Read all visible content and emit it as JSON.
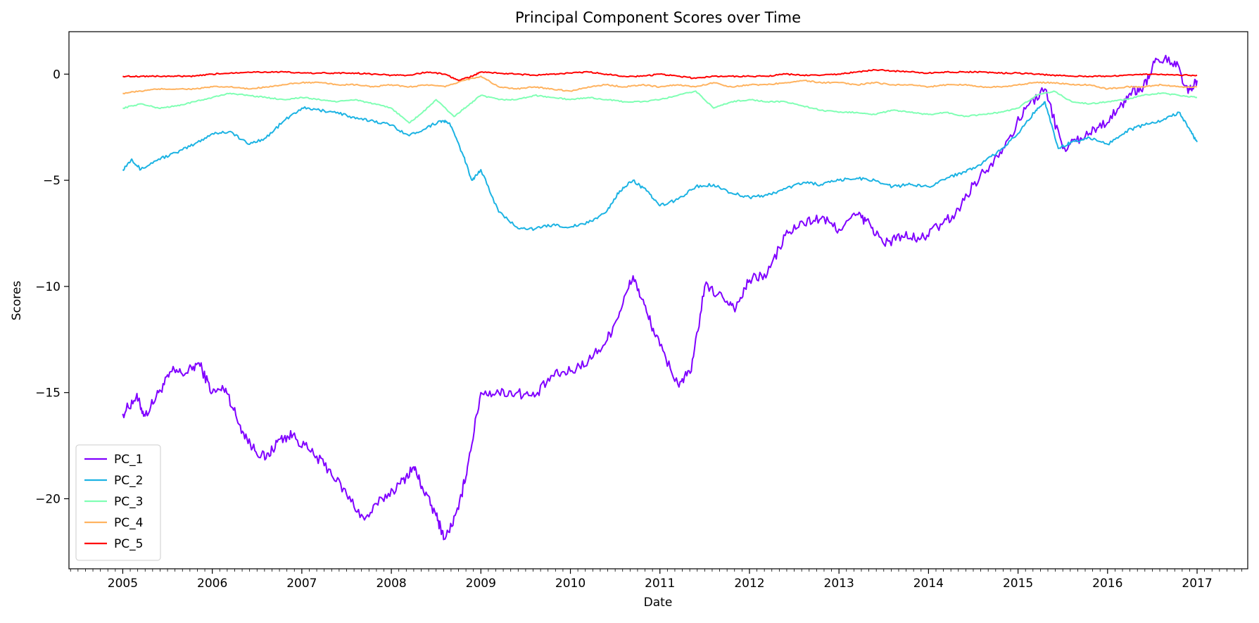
{
  "chart_data": {
    "type": "line",
    "title": "Principal Component Scores over Time",
    "xlabel": "Date",
    "ylabel": "Scores",
    "xlim": [
      "2004-05-25",
      "2017-07-25"
    ],
    "ylim": [
      -23.3,
      2.0
    ],
    "xticks": [
      "2005",
      "2006",
      "2007",
      "2008",
      "2009",
      "2010",
      "2011",
      "2012",
      "2013",
      "2014",
      "2015",
      "2016",
      "2017"
    ],
    "yticks": [
      0,
      -5,
      -10,
      -15,
      -20
    ],
    "ytick_labels": [
      "0",
      "−5",
      "−10",
      "−15",
      "−20"
    ],
    "grid": false,
    "legend_position": "lower-left",
    "series": [
      {
        "name": "PC_1",
        "color": "#8000ff",
        "x": [
          2005.0,
          2005.15,
          2005.25,
          2005.4,
          2005.55,
          2005.7,
          2005.85,
          2006.0,
          2006.15,
          2006.3,
          2006.45,
          2006.6,
          2006.75,
          2006.9,
          2007.1,
          2007.3,
          2007.5,
          2007.7,
          2007.9,
          2008.1,
          2008.25,
          2008.35,
          2008.5,
          2008.6,
          2008.75,
          2008.85,
          2009.0,
          2009.2,
          2009.4,
          2009.6,
          2009.8,
          2010.0,
          2010.2,
          2010.4,
          2010.55,
          2010.7,
          2010.85,
          2011.0,
          2011.2,
          2011.35,
          2011.5,
          2011.7,
          2011.85,
          2012.0,
          2012.2,
          2012.4,
          2012.6,
          2012.8,
          2013.0,
          2013.2,
          2013.35,
          2013.5,
          2013.7,
          2013.9,
          2014.1,
          2014.3,
          2014.5,
          2014.7,
          2014.9,
          2015.1,
          2015.3,
          2015.5,
          2015.7,
          2015.9,
          2016.1,
          2016.25,
          2016.4,
          2016.55,
          2016.75,
          2016.9,
          2017.0
        ],
        "y": [
          -16.0,
          -15.2,
          -16.1,
          -15.0,
          -14.0,
          -14.1,
          -13.6,
          -15.0,
          -14.8,
          -16.5,
          -17.6,
          -18.1,
          -17.2,
          -17.0,
          -17.8,
          -18.6,
          -19.8,
          -21.0,
          -20.0,
          -19.3,
          -18.5,
          -19.5,
          -20.8,
          -21.9,
          -20.5,
          -18.5,
          -15.0,
          -15.0,
          -15.0,
          -15.2,
          -14.2,
          -14.0,
          -13.5,
          -12.6,
          -11.2,
          -9.5,
          -11.2,
          -12.8,
          -14.6,
          -14.0,
          -10.0,
          -10.5,
          -11.0,
          -9.7,
          -9.4,
          -7.6,
          -7.0,
          -6.8,
          -7.3,
          -6.6,
          -7.1,
          -8.0,
          -7.6,
          -7.8,
          -7.2,
          -6.6,
          -5.2,
          -4.2,
          -3.0,
          -1.5,
          -0.7,
          -3.5,
          -3.0,
          -2.5,
          -1.8,
          -0.9,
          -0.6,
          0.7,
          0.6,
          -0.9,
          -0.3
        ]
      },
      {
        "name": "PC_2",
        "color": "#1cb3e3",
        "x": [
          2005.0,
          2005.1,
          2005.2,
          2005.4,
          2005.6,
          2005.8,
          2006.0,
          2006.2,
          2006.4,
          2006.6,
          2006.8,
          2007.0,
          2007.2,
          2007.4,
          2007.6,
          2007.8,
          2008.0,
          2008.2,
          2008.4,
          2008.55,
          2008.65,
          2008.8,
          2008.9,
          2009.0,
          2009.2,
          2009.4,
          2009.6,
          2009.8,
          2010.0,
          2010.2,
          2010.4,
          2010.55,
          2010.7,
          2010.85,
          2011.0,
          2011.2,
          2011.4,
          2011.6,
          2011.8,
          2012.0,
          2012.2,
          2012.4,
          2012.6,
          2012.8,
          2013.0,
          2013.2,
          2013.4,
          2013.6,
          2013.8,
          2014.0,
          2014.2,
          2014.4,
          2014.6,
          2014.8,
          2015.0,
          2015.2,
          2015.3,
          2015.45,
          2015.6,
          2015.8,
          2016.0,
          2016.2,
          2016.4,
          2016.6,
          2016.8,
          2016.9,
          2017.0
        ],
        "y": [
          -4.5,
          -4.0,
          -4.5,
          -4.0,
          -3.7,
          -3.3,
          -2.8,
          -2.7,
          -3.3,
          -3.0,
          -2.2,
          -1.6,
          -1.7,
          -1.8,
          -2.1,
          -2.2,
          -2.4,
          -2.9,
          -2.5,
          -2.2,
          -2.3,
          -3.8,
          -5.0,
          -4.5,
          -6.5,
          -7.2,
          -7.3,
          -7.1,
          -7.2,
          -7.0,
          -6.5,
          -5.5,
          -5.0,
          -5.5,
          -6.2,
          -5.9,
          -5.3,
          -5.2,
          -5.6,
          -5.8,
          -5.7,
          -5.4,
          -5.1,
          -5.2,
          -5.0,
          -4.9,
          -5.0,
          -5.3,
          -5.2,
          -5.3,
          -4.9,
          -4.6,
          -4.2,
          -3.6,
          -2.8,
          -1.7,
          -1.3,
          -3.5,
          -3.2,
          -3.0,
          -3.3,
          -2.7,
          -2.4,
          -2.2,
          -1.8,
          -2.5,
          -3.2
        ]
      },
      {
        "name": "PC_3",
        "color": "#80ffb4",
        "x": [
          2005.0,
          2005.2,
          2005.4,
          2005.6,
          2005.8,
          2006.0,
          2006.2,
          2006.4,
          2006.6,
          2006.8,
          2007.0,
          2007.2,
          2007.4,
          2007.6,
          2007.8,
          2008.0,
          2008.2,
          2008.35,
          2008.5,
          2008.7,
          2008.85,
          2009.0,
          2009.2,
          2009.4,
          2009.6,
          2009.8,
          2010.0,
          2010.2,
          2010.4,
          2010.6,
          2010.8,
          2011.0,
          2011.2,
          2011.4,
          2011.6,
          2011.8,
          2012.0,
          2012.2,
          2012.4,
          2012.6,
          2012.8,
          2013.0,
          2013.2,
          2013.4,
          2013.6,
          2013.8,
          2014.0,
          2014.2,
          2014.4,
          2014.6,
          2014.8,
          2015.0,
          2015.2,
          2015.4,
          2015.6,
          2015.8,
          2016.0,
          2016.2,
          2016.4,
          2016.6,
          2016.8,
          2017.0
        ],
        "y": [
          -1.6,
          -1.4,
          -1.6,
          -1.5,
          -1.3,
          -1.1,
          -0.9,
          -1.0,
          -1.1,
          -1.2,
          -1.1,
          -1.2,
          -1.3,
          -1.2,
          -1.4,
          -1.6,
          -2.3,
          -1.8,
          -1.2,
          -2.0,
          -1.5,
          -1.0,
          -1.2,
          -1.2,
          -1.0,
          -1.1,
          -1.2,
          -1.1,
          -1.2,
          -1.3,
          -1.3,
          -1.2,
          -1.0,
          -0.8,
          -1.6,
          -1.3,
          -1.2,
          -1.3,
          -1.3,
          -1.5,
          -1.7,
          -1.8,
          -1.8,
          -1.9,
          -1.7,
          -1.8,
          -1.9,
          -1.8,
          -2.0,
          -1.9,
          -1.8,
          -1.6,
          -1.0,
          -0.8,
          -1.3,
          -1.4,
          -1.3,
          -1.2,
          -1.0,
          -0.9,
          -1.0,
          -1.1
        ]
      },
      {
        "name": "PC_4",
        "color": "#ffb360",
        "x": [
          2005.0,
          2005.2,
          2005.4,
          2005.6,
          2005.8,
          2006.0,
          2006.2,
          2006.4,
          2006.6,
          2006.8,
          2007.0,
          2007.2,
          2007.4,
          2007.6,
          2007.8,
          2008.0,
          2008.2,
          2008.4,
          2008.6,
          2008.8,
          2009.0,
          2009.2,
          2009.4,
          2009.6,
          2009.8,
          2010.0,
          2010.2,
          2010.4,
          2010.6,
          2010.8,
          2011.0,
          2011.2,
          2011.4,
          2011.6,
          2011.8,
          2012.0,
          2012.2,
          2012.4,
          2012.6,
          2012.8,
          2013.0,
          2013.2,
          2013.4,
          2013.6,
          2013.8,
          2014.0,
          2014.2,
          2014.4,
          2014.6,
          2014.8,
          2015.0,
          2015.2,
          2015.4,
          2015.6,
          2015.8,
          2016.0,
          2016.2,
          2016.4,
          2016.6,
          2016.8,
          2017.0
        ],
        "y": [
          -0.9,
          -0.8,
          -0.7,
          -0.7,
          -0.7,
          -0.6,
          -0.6,
          -0.7,
          -0.6,
          -0.5,
          -0.4,
          -0.4,
          -0.5,
          -0.5,
          -0.6,
          -0.5,
          -0.6,
          -0.5,
          -0.6,
          -0.3,
          -0.1,
          -0.6,
          -0.7,
          -0.6,
          -0.7,
          -0.8,
          -0.6,
          -0.5,
          -0.6,
          -0.5,
          -0.6,
          -0.5,
          -0.6,
          -0.4,
          -0.6,
          -0.5,
          -0.5,
          -0.4,
          -0.3,
          -0.4,
          -0.4,
          -0.5,
          -0.4,
          -0.5,
          -0.5,
          -0.6,
          -0.5,
          -0.5,
          -0.6,
          -0.6,
          -0.5,
          -0.4,
          -0.4,
          -0.5,
          -0.5,
          -0.7,
          -0.6,
          -0.6,
          -0.5,
          -0.6,
          -0.6
        ]
      },
      {
        "name": "PC_5",
        "color": "#ff0000",
        "x": [
          2005.0,
          2005.2,
          2005.4,
          2005.6,
          2005.8,
          2006.0,
          2006.2,
          2006.4,
          2006.6,
          2006.8,
          2007.0,
          2007.2,
          2007.4,
          2007.6,
          2007.8,
          2008.0,
          2008.2,
          2008.4,
          2008.6,
          2008.75,
          2008.9,
          2009.0,
          2009.2,
          2009.4,
          2009.6,
          2009.8,
          2010.0,
          2010.2,
          2010.4,
          2010.6,
          2010.8,
          2011.0,
          2011.2,
          2011.4,
          2011.6,
          2011.8,
          2012.0,
          2012.2,
          2012.4,
          2012.6,
          2012.8,
          2013.0,
          2013.2,
          2013.4,
          2013.6,
          2013.8,
          2014.0,
          2014.2,
          2014.4,
          2014.6,
          2014.8,
          2015.0,
          2015.2,
          2015.4,
          2015.6,
          2015.8,
          2016.0,
          2016.2,
          2016.4,
          2016.6,
          2016.8,
          2017.0
        ],
        "y": [
          -0.1,
          -0.1,
          -0.1,
          -0.1,
          -0.1,
          0.0,
          0.05,
          0.1,
          0.1,
          0.1,
          0.05,
          0.05,
          0.05,
          0.05,
          0.0,
          -0.05,
          -0.05,
          0.1,
          0.0,
          -0.3,
          -0.1,
          0.1,
          0.05,
          0.0,
          -0.05,
          0.0,
          0.05,
          0.1,
          0.0,
          -0.1,
          -0.1,
          0.0,
          -0.1,
          -0.2,
          -0.1,
          -0.1,
          -0.1,
          -0.1,
          0.0,
          -0.05,
          -0.05,
          0.0,
          0.1,
          0.2,
          0.15,
          0.1,
          0.05,
          0.1,
          0.1,
          0.1,
          0.05,
          0.05,
          0.0,
          -0.05,
          -0.1,
          -0.1,
          -0.1,
          -0.05,
          0.0,
          0.0,
          -0.05,
          -0.05
        ]
      }
    ]
  }
}
